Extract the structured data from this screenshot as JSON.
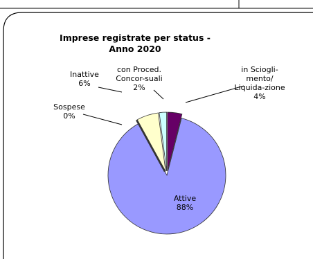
{
  "chart_data": {
    "type": "pie",
    "title": "Imprese registrate per status - Anno 2020",
    "categories": [
      "Attive",
      "Sospese",
      "Inattive",
      "con Proced. Concor-suali",
      "in Sciogli-mento/ Liquida-zione"
    ],
    "values": [
      88,
      0,
      6,
      2,
      4
    ],
    "value_labels": [
      "88%",
      "0%",
      "6%",
      "2%",
      "4%"
    ],
    "colors": [
      "#9999ff",
      "#993366",
      "#ffffcc",
      "#ccffff",
      "#660066"
    ]
  }
}
